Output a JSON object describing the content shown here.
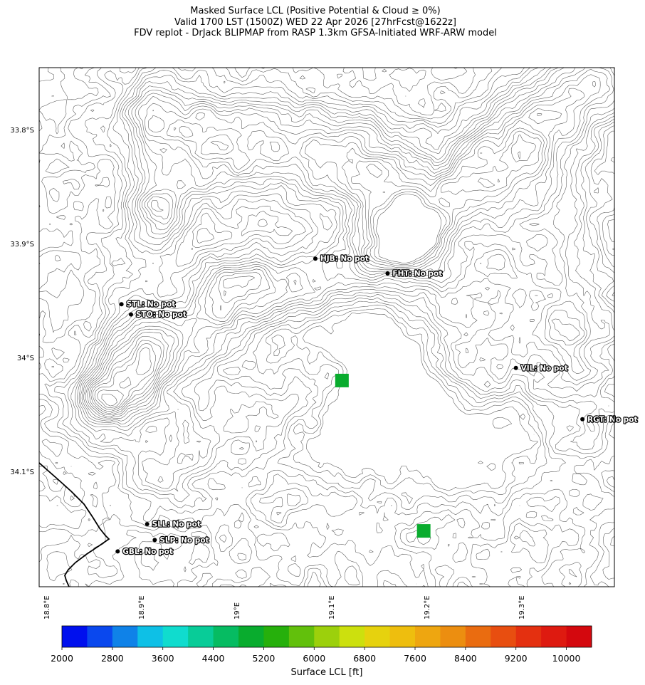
{
  "title": {
    "line1": "Masked Surface LCL (Positive Potential & Cloud ≥ 0%)",
    "line2": "Valid 1700 LST (1500Z) WED 22 Apr 2026 [27hrFcst@1622z]",
    "line3": "FDV replot - DrJack BLIPMAP from RASP 1.3km GFSA-Initiated WRF-ARW model"
  },
  "lat_labels": [
    "33.8°S",
    "33.9°S",
    "34°S",
    "34.1°S"
  ],
  "lon_labels": [
    "18.8°E",
    "18.9°E",
    "19°E",
    "19.1°E",
    "19.2°E",
    "19.3°E"
  ],
  "sites": [
    {
      "code": "HJB",
      "label": "HJB: No pot",
      "lon": 19.082,
      "lat": -33.912
    },
    {
      "code": "FHT",
      "label": "FHT: No pot",
      "lon": 19.158,
      "lat": -33.925
    },
    {
      "code": "STL",
      "label": "STL: No pot",
      "lon": 18.878,
      "lat": -33.952
    },
    {
      "code": "STO",
      "label": "STO: No pot",
      "lon": 18.888,
      "lat": -33.961
    },
    {
      "code": "VIL",
      "label": "VIL: No pot",
      "lon": 19.293,
      "lat": -34.008
    },
    {
      "code": "RGT",
      "label": "RGT: No pot",
      "lon": 19.363,
      "lat": -34.053
    },
    {
      "code": "SLL",
      "label": "SLL: No pot",
      "lon": 18.905,
      "lat": -34.145
    },
    {
      "code": "SLP",
      "label": "SLP: No pot",
      "lon": 18.913,
      "lat": -34.159
    },
    {
      "code": "GBL",
      "label": "GBL: No pot",
      "lon": 18.874,
      "lat": -34.169
    }
  ],
  "lcl_cells": [
    {
      "lon": 19.11,
      "lat": -34.019,
      "lcl_ft": 5000
    },
    {
      "lon": 19.196,
      "lat": -34.151,
      "lcl_ft": 4900
    }
  ],
  "colorbar": {
    "label": "Surface LCL [ft]",
    "min": 2000,
    "max": 10400,
    "step": 400,
    "tick_values": [
      "2000",
      "2800",
      "3600",
      "4400",
      "5200",
      "6000",
      "6800",
      "7600",
      "8400",
      "9200",
      "10000"
    ],
    "colors": [
      "#0010ee",
      "#0a48ee",
      "#0f82e8",
      "#0ec0e6",
      "#10dcce",
      "#08cc98",
      "#06bc62",
      "#09ac2e",
      "#26b00c",
      "#62c00c",
      "#9cd00c",
      "#cce00e",
      "#e6d20e",
      "#eebe0e",
      "#eea610",
      "#ec8e10",
      "#ea6c10",
      "#e84e10",
      "#e43010",
      "#de1a10",
      "#d4080e"
    ]
  },
  "colors": {
    "contour": "#555555",
    "coast": "#000000",
    "site_marker": "#000000",
    "site_label_text": "#ffffff",
    "site_label_outline": "#000000"
  }
}
